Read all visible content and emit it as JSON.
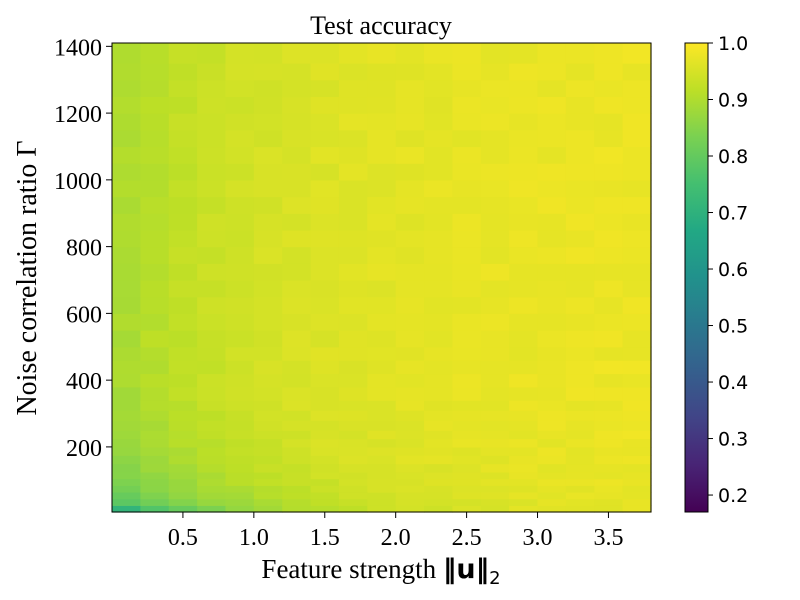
{
  "chart_data": {
    "type": "heatmap",
    "title": "Test accuracy",
    "xlabel_prefix": "Feature strength ",
    "xlabel_norm_symbol": "‖u‖",
    "xlabel_subscript": "2",
    "ylabel": "Noise correlation ratio Γ",
    "x_ticks": [
      0.5,
      1.0,
      1.5,
      2.0,
      2.5,
      3.0,
      3.5
    ],
    "y_ticks": [
      200,
      400,
      600,
      800,
      1000,
      1200,
      1400
    ],
    "xlim": [
      0.0,
      3.8
    ],
    "ylim": [
      5,
      1410
    ],
    "colorbar": {
      "colormap": "viridis",
      "range": [
        0.17,
        1.0
      ],
      "ticks": [
        0.2,
        0.3,
        0.4,
        0.5,
        0.6,
        0.7,
        0.8,
        0.9,
        1.0
      ]
    },
    "x_centers": [
      0.1,
      0.3,
      0.5,
      0.7,
      0.9,
      1.1,
      1.3,
      1.5,
      1.7,
      1.9,
      2.1,
      2.3,
      2.5,
      2.7,
      2.9,
      3.1,
      3.3,
      3.5,
      3.7
    ],
    "y_edges": [
      5,
      25,
      45,
      65,
      85,
      105,
      125,
      150,
      175,
      200,
      225,
      250,
      280,
      310,
      340,
      380,
      420,
      460,
      500,
      550,
      600,
      650,
      700,
      750,
      800,
      850,
      900,
      950,
      1000,
      1050,
      1100,
      1150,
      1200,
      1250,
      1300,
      1350,
      1410
    ],
    "row_labels_y_center": [
      15,
      35,
      55,
      75,
      95,
      115,
      137.5,
      162.5,
      187.5,
      212.5,
      237.5,
      265,
      295,
      325,
      360,
      400,
      440,
      480,
      525,
      575,
      625,
      675,
      725,
      775,
      825,
      875,
      925,
      975,
      1025,
      1075,
      1125,
      1175,
      1225,
      1275,
      1325,
      1380
    ],
    "noise_amplitude": 0.008
  }
}
